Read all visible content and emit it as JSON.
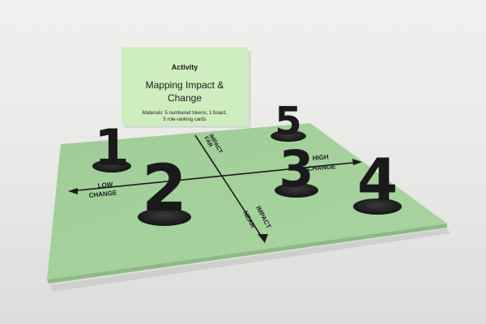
{
  "card": {
    "heading": "Activity",
    "title_line1": "Mapping Impact &",
    "title_line2": "Change",
    "materials_line1": "Materials: 5 numbered tokens,  1 board,",
    "materials_line2": "5 role-ranking cards"
  },
  "board": {
    "axis_top_1": "FAR",
    "axis_top_2": "IMPACT",
    "axis_bottom_1": "NEAR",
    "axis_bottom_2": "IMPACT",
    "axis_right_1": "HIGH",
    "axis_right_2": "CHANGE",
    "axis_left_1": "LOW",
    "axis_left_2": "CHANGE"
  },
  "tokens": {
    "t1": "1",
    "t2": "2",
    "t3": "3",
    "t4": "4",
    "t5": "5"
  },
  "colors": {
    "background": "#e9e9e7",
    "board_green": "#a6d29e",
    "card_green": "#cfeec0",
    "token_black": "#1a1a1a"
  }
}
